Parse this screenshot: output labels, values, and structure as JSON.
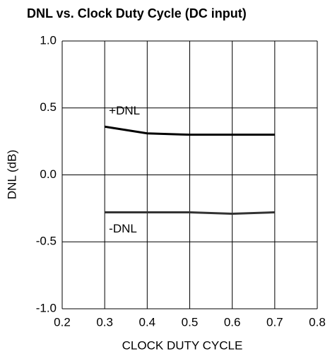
{
  "chart_data": {
    "type": "line",
    "title": "DNL vs. Clock Duty Cycle (DC input)",
    "x_label": "CLOCK DUTY CYCLE",
    "y_label": "DNL (dB)",
    "x": [
      0.3,
      0.4,
      0.5,
      0.6,
      0.7
    ],
    "series": [
      {
        "name": "+DNL",
        "color": "#000000",
        "values": [
          0.36,
          0.31,
          0.3,
          0.3,
          0.3
        ]
      },
      {
        "name": "-DNL",
        "color": "#333333",
        "values": [
          -0.28,
          -0.28,
          -0.28,
          -0.29,
          -0.28
        ]
      }
    ],
    "xlim": [
      0.2,
      0.8
    ],
    "xticks": [
      0.2,
      0.3,
      0.4,
      0.5,
      0.6,
      0.7,
      0.8
    ],
    "ylim": [
      -1,
      1
    ],
    "yticks": [
      {
        "value": 1,
        "label": "1.0"
      },
      0.5,
      {
        "value": 0,
        "label": "0.0"
      },
      -0.5,
      {
        "value": -1,
        "label": "-1.0"
      }
    ],
    "grid": true
  }
}
